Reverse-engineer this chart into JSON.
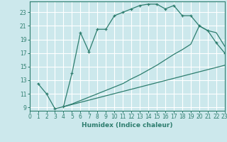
{
  "background_color": "#cce8ec",
  "grid_color": "#ffffff",
  "line_color": "#2d7d6e",
  "xlabel": "Humidex (Indice chaleur)",
  "xlim": [
    0,
    23
  ],
  "ylim": [
    8.5,
    24.6
  ],
  "yticks": [
    9,
    11,
    13,
    15,
    17,
    19,
    21,
    23
  ],
  "xticks": [
    0,
    1,
    2,
    3,
    4,
    5,
    6,
    7,
    8,
    9,
    10,
    11,
    12,
    13,
    14,
    15,
    16,
    17,
    18,
    19,
    20,
    21,
    22,
    23
  ],
  "line1_x": [
    1,
    2,
    3,
    4,
    5,
    6,
    7,
    8,
    9,
    10,
    11,
    12,
    13,
    14,
    15,
    16,
    17,
    18,
    19,
    20,
    21,
    22,
    23
  ],
  "line1_y": [
    12.5,
    11.0,
    8.8,
    9.1,
    14.0,
    20.0,
    17.2,
    20.5,
    20.5,
    22.5,
    23.0,
    23.5,
    24.0,
    24.2,
    24.2,
    23.5,
    24.0,
    22.5,
    22.5,
    21.0,
    20.3,
    18.5,
    17.0
  ],
  "line2_x": [
    4,
    5,
    6,
    7,
    8,
    9,
    10,
    11,
    12,
    13,
    14,
    15,
    16,
    17,
    18,
    19,
    20,
    21,
    22,
    23
  ],
  "line2_y": [
    9.1,
    9.5,
    10.0,
    10.5,
    11.0,
    11.5,
    12.0,
    12.5,
    13.2,
    13.8,
    14.5,
    15.2,
    16.0,
    16.8,
    17.5,
    18.3,
    21.0,
    20.3,
    20.0,
    18.0
  ],
  "line3_x": [
    4,
    23
  ],
  "line3_y": [
    9.1,
    15.2
  ]
}
